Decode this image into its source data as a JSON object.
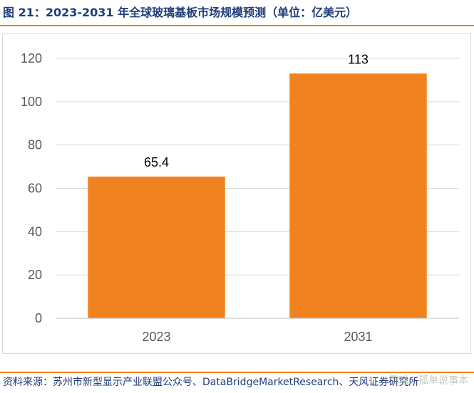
{
  "figure": {
    "title": "图 21：2023-2031 年全球玻璃基板市场规模预测（单位：亿美元）",
    "source": "资料来源：苏州市新型显示产业联盟公众号、DataBridgeMarketResearch、天风证券研究所",
    "watermark": "雪球：孤单说事本"
  },
  "colors": {
    "bar": "#f0831f",
    "rule": "#f0831f",
    "title": "#1f3d7a",
    "axis": "#bfbfbf",
    "grid": "#d9d9d9",
    "tick_text": "#595959"
  },
  "chart_data": {
    "type": "bar",
    "categories": [
      "2023",
      "2031"
    ],
    "values": [
      65.4,
      113
    ],
    "value_labels": [
      "65.4",
      "113"
    ],
    "title": "",
    "xlabel": "",
    "ylabel": "",
    "ylim": [
      0,
      120
    ],
    "yticks": [
      0,
      20,
      40,
      60,
      80,
      100,
      120
    ],
    "grid": true,
    "legend": "none"
  }
}
